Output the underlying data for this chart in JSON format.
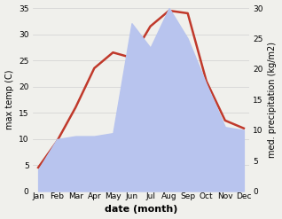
{
  "months": [
    "Jan",
    "Feb",
    "Mar",
    "Apr",
    "May",
    "Jun",
    "Jul",
    "Aug",
    "Sep",
    "Oct",
    "Nov",
    "Dec"
  ],
  "month_positions": [
    0,
    1,
    2,
    3,
    4,
    5,
    6,
    7,
    8,
    9,
    10,
    11
  ],
  "temperature": [
    4.5,
    9.5,
    16.0,
    23.5,
    26.5,
    25.5,
    31.5,
    34.5,
    34.0,
    21.0,
    13.5,
    12.0
  ],
  "precipitation": [
    3.5,
    8.5,
    9.0,
    9.0,
    9.5,
    27.5,
    23.5,
    30.0,
    25.0,
    17.5,
    10.5,
    10.0
  ],
  "temp_color": "#c0392b",
  "precip_fill_color": "#b8c4ee",
  "temp_ylim": [
    0,
    35
  ],
  "precip_ylim": [
    0,
    30
  ],
  "temp_yticks": [
    0,
    5,
    10,
    15,
    20,
    25,
    30,
    35
  ],
  "precip_yticks": [
    0,
    5,
    10,
    15,
    20,
    25,
    30
  ],
  "xlabel": "date (month)",
  "ylabel_left": "max temp (C)",
  "ylabel_right": "med. precipitation (kg/m2)",
  "bg_color": "#f0f0ec",
  "grid_color": "#d0d0d0",
  "linewidth": 1.8
}
